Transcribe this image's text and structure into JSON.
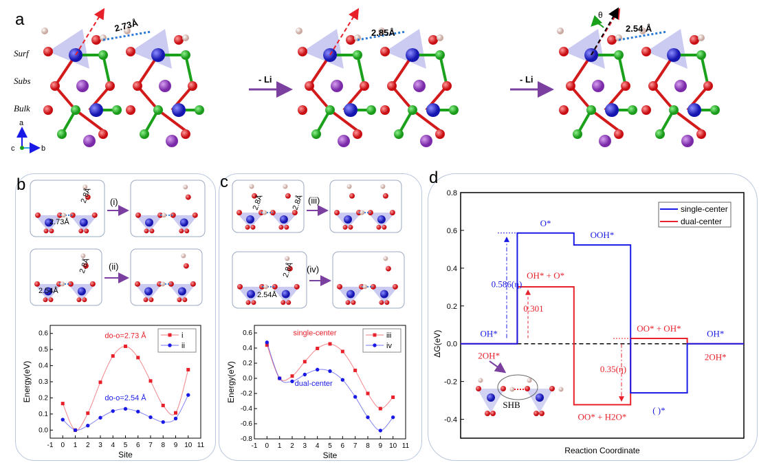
{
  "panel_a": {
    "letter": "a",
    "layer_labels": [
      "Surf",
      "Subs",
      "Bulk"
    ],
    "distances": [
      "2.73Å",
      "2.85Å",
      "2.54 Å"
    ],
    "arrow_labels": [
      "- Li",
      "- Li"
    ],
    "theta": "θ",
    "axes": {
      "a": "a",
      "b": "b",
      "c": "c"
    }
  },
  "panel_b": {
    "letter": "b",
    "inset_labels": {
      "d1": "2.8Å",
      "d2": "2.73Å",
      "step1": "(i)",
      "d3": "2.8Å",
      "d4": "2.54Å",
      "step2": "(ii)"
    }
  },
  "panel_c": {
    "letter": "c",
    "inset_labels": {
      "d1": "2.8Å",
      "d2": "2.8Å",
      "step1": "(iii)",
      "d3": "2.8Å",
      "d4": "2.54Å",
      "step2": "(iv)"
    }
  },
  "panel_d": {
    "letter": "d",
    "shb_label": "SHB"
  },
  "colors": {
    "red": "#e8202a",
    "blue": "#1a1ae6",
    "purple": "#7b3fa0",
    "panel_border": "#b8c6dc"
  },
  "chart_data": [
    {
      "id": "b",
      "type": "line",
      "xlabel": "Site",
      "ylabel": "Energy(eV)",
      "xlim": [
        -1,
        11
      ],
      "ylim": [
        -0.05,
        0.65
      ],
      "xticks": [
        -1,
        0,
        1,
        2,
        3,
        4,
        5,
        6,
        7,
        8,
        9,
        10,
        11
      ],
      "yticks": [
        0.0,
        0.1,
        0.2,
        0.3,
        0.4,
        0.5,
        0.6
      ],
      "ytick_labels": [
        "0.0",
        "0.1",
        "0.2",
        "0.3",
        "0.4",
        "0.5",
        "0.6"
      ],
      "x": [
        0,
        1,
        2,
        3,
        4,
        5,
        6,
        7,
        8,
        9,
        10
      ],
      "series": [
        {
          "name": "i",
          "color": "#e8202a",
          "marker": "square",
          "values": [
            0.165,
            0.0,
            0.105,
            0.297,
            0.46,
            0.52,
            0.45,
            0.305,
            0.153,
            0.107,
            0.375
          ]
        },
        {
          "name": "ii",
          "color": "#1a1ae6",
          "marker": "circle",
          "values": [
            0.065,
            0.0,
            0.028,
            0.077,
            0.118,
            0.132,
            0.115,
            0.08,
            0.05,
            0.072,
            0.218
          ]
        }
      ],
      "annotations": [
        {
          "text": "do-o=2.73 Å",
          "color": "#e8202a",
          "at": [
            5,
            0.57
          ]
        },
        {
          "text": "do-o=2.54 Å",
          "color": "#1a1ae6",
          "at": [
            5,
            0.185
          ]
        }
      ],
      "legend": "top-right"
    },
    {
      "id": "c",
      "type": "line",
      "xlabel": "Site",
      "ylabel": "Energy(eV)",
      "xlim": [
        -1,
        11
      ],
      "ylim": [
        -0.8,
        0.7
      ],
      "xticks": [
        -1,
        0,
        1,
        2,
        3,
        4,
        5,
        6,
        7,
        8,
        9,
        10,
        11
      ],
      "yticks": [
        -0.8,
        -0.6,
        -0.4,
        -0.2,
        0.0,
        0.2,
        0.4,
        0.6
      ],
      "ytick_labels": [
        "-0.8",
        "-0.6",
        "-0.4",
        "-0.2",
        "0.0",
        "0.2",
        "0.4",
        "0.6"
      ],
      "x": [
        0,
        1,
        2,
        3,
        4,
        5,
        6,
        7,
        8,
        9,
        10
      ],
      "series": [
        {
          "name": "iii",
          "color": "#e8202a",
          "marker": "square",
          "values": [
            0.44,
            0.0,
            0.03,
            0.22,
            0.395,
            0.455,
            0.355,
            0.105,
            -0.2,
            -0.4,
            -0.25
          ]
        },
        {
          "name": "iv",
          "color": "#1a1ae6",
          "marker": "circle",
          "values": [
            0.475,
            0.0,
            -0.04,
            0.05,
            0.115,
            0.095,
            -0.02,
            -0.245,
            -0.515,
            -0.69,
            -0.515
          ]
        }
      ],
      "annotations": [
        {
          "text": "single-center",
          "color": "#e8202a",
          "at": [
            3.8,
            0.57
          ]
        },
        {
          "text": "dual-center",
          "color": "#1a1ae6",
          "at": [
            3.7,
            -0.1
          ]
        }
      ],
      "legend": "top-right"
    },
    {
      "id": "d",
      "type": "line",
      "xlabel": "Reaction Coordinate",
      "ylabel": "ΔG(eV)",
      "ylim": [
        -0.5,
        0.8
      ],
      "yticks": [
        -0.4,
        -0.2,
        0.0,
        0.2,
        0.4,
        0.6,
        0.8
      ],
      "ytick_labels": [
        "-0.4",
        "-0.2",
        "0.0",
        "0.2",
        "0.4",
        "0.6",
        "0.8"
      ],
      "steps": 5,
      "series": [
        {
          "name": "single-center",
          "color": "#1a1ae6",
          "values": [
            0,
            0.586,
            0.523,
            -0.26,
            0
          ],
          "state_labels": [
            "OH*",
            "O*",
            "OOH*",
            "( )*",
            "OH*"
          ]
        },
        {
          "name": "dual-center",
          "color": "#e8202a",
          "values": [
            0,
            0.301,
            -0.323,
            0.028,
            0
          ],
          "state_labels": [
            "2OH*",
            "OH* + O*",
            "OO* + H2O*",
            "OO* + OH*",
            "2OH*"
          ]
        }
      ],
      "annotations": [
        {
          "text": "0.586(η)",
          "color": "#1a1ae6"
        },
        {
          "text": "0.301",
          "color": "#e8202a"
        },
        {
          "text": "0.35(η)",
          "color": "#e8202a"
        }
      ],
      "legend": "top-right"
    }
  ]
}
